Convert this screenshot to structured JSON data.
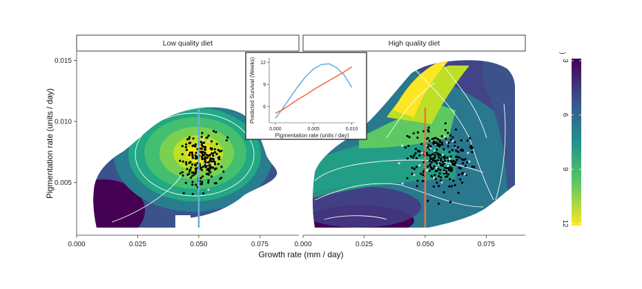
{
  "chart_data": {
    "type": "heatmap",
    "facets": [
      "Low quality diet",
      "High quality diet"
    ],
    "xlabel": "Growth rate (mm / day)",
    "ylabel": "Pigmentation rate (units / day)",
    "x_ticks": [
      "0.000",
      "0.025",
      "0.050",
      "0.075"
    ],
    "y_ticks": [
      "0.005",
      "0.010",
      "0.015"
    ],
    "xlim": [
      0,
      0.091
    ],
    "ylim": [
      0.0007,
      0.0157
    ],
    "colorbar": {
      "title": ")",
      "ticks": [
        "3",
        "6",
        "9",
        "12"
      ],
      "range": [
        3,
        12
      ],
      "colors": [
        "#440154",
        "#3b528b",
        "#21918c",
        "#5ec962",
        "#fde725"
      ]
    },
    "contour_color": "#ffffff",
    "vertical_line_x": 0.05,
    "panels": [
      {
        "name": "Low quality diet",
        "line_color": "#6baed6",
        "points_center": [
          0.052,
          0.0068
        ],
        "points_spread": [
          0.0055,
          0.0015
        ],
        "n_points": 200
      },
      {
        "name": "High quality diet",
        "line_color": "#f46d43",
        "points_center": [
          0.056,
          0.0068
        ],
        "points_spread": [
          0.01,
          0.0018
        ],
        "n_points": 250
      }
    ],
    "inset": {
      "xlabel": "Pigmentation rate (units / day)",
      "ylabel": "Predicted Survival (Weeks)",
      "x_ticks": [
        "0.000",
        "0.005",
        "0.010"
      ],
      "y_ticks": [
        "6",
        "9",
        "12"
      ],
      "xlim": [
        -0.0008,
        0.0104
      ],
      "ylim": [
        3.8,
        12.6
      ],
      "series": [
        {
          "color": "#6baed6",
          "x": [
            0,
            0.001,
            0.002,
            0.003,
            0.004,
            0.005,
            0.006,
            0.007,
            0.008,
            0.009,
            0.01
          ],
          "y": [
            4.4,
            5.8,
            7.3,
            8.8,
            10.1,
            11.1,
            11.7,
            11.8,
            11.3,
            10.3,
            8.6
          ]
        },
        {
          "color": "#f46d43",
          "x": [
            0,
            0.001,
            0.002,
            0.003,
            0.004,
            0.005,
            0.006,
            0.007,
            0.008,
            0.009,
            0.01
          ],
          "y": [
            5.1,
            5.6,
            6.3,
            7.0,
            7.6,
            8.3,
            8.9,
            9.5,
            10.1,
            10.7,
            11.4
          ]
        }
      ]
    }
  }
}
